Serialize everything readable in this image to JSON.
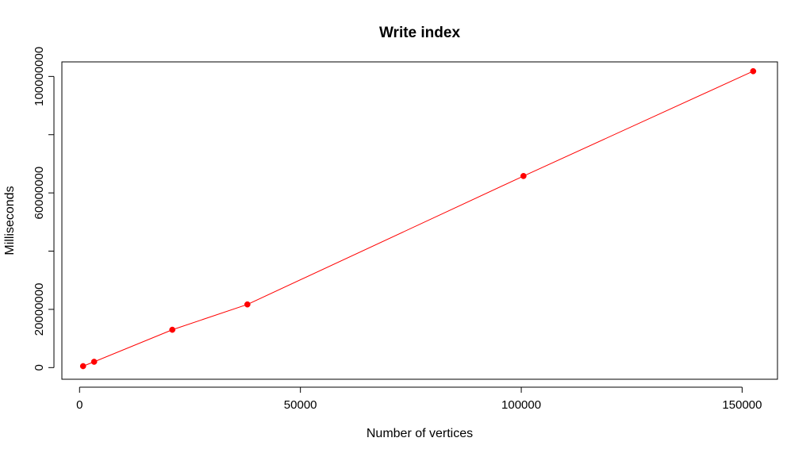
{
  "chart_data": {
    "type": "line",
    "title": "Write index",
    "xlabel": "Number of vertices",
    "ylabel": "Milliseconds",
    "xlim": [
      -4000,
      158000
    ],
    "ylim": [
      -4000000,
      105000000
    ],
    "x_ticks": [
      {
        "value": 0,
        "label": "0"
      },
      {
        "value": 50000,
        "label": "50000"
      },
      {
        "value": 100000,
        "label": "100000"
      },
      {
        "value": 150000,
        "label": "150000"
      }
    ],
    "y_ticks": [
      {
        "value": 0,
        "label": "0"
      },
      {
        "value": 20000000,
        "label": "20000000"
      },
      {
        "value": 40000000,
        "label": ""
      },
      {
        "value": 60000000,
        "label": "60000000"
      },
      {
        "value": 80000000,
        "label": ""
      },
      {
        "value": 100000000,
        "label": "100000000"
      }
    ],
    "grid": false,
    "series": [
      {
        "color": "#ff0000",
        "points": [
          {
            "x": 800,
            "y": 500000
          },
          {
            "x": 3300,
            "y": 2000000
          },
          {
            "x": 21000,
            "y": 13000000
          },
          {
            "x": 38000,
            "y": 21700000
          },
          {
            "x": 100500,
            "y": 65800000
          },
          {
            "x": 152500,
            "y": 101800000
          }
        ]
      }
    ]
  }
}
